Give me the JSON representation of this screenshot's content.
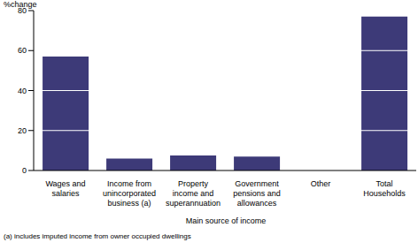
{
  "chart_data": {
    "type": "bar",
    "y_label": "%change",
    "x_label": "Main source of income",
    "footnote": "(a) includes imputed income from owner occupied dwellings",
    "categories": [
      "Wages and salaries",
      "Income from unincorporated business (a)",
      "Property income and superannuation",
      "Government pensions and allowances",
      "Other",
      "Total Households"
    ],
    "values": [
      57,
      6,
      7.5,
      7,
      0,
      77
    ],
    "color": "#3d3a78",
    "ylim": [
      0,
      80
    ],
    "yticks": [
      0,
      20,
      40,
      60,
      80
    ],
    "grid": true
  }
}
